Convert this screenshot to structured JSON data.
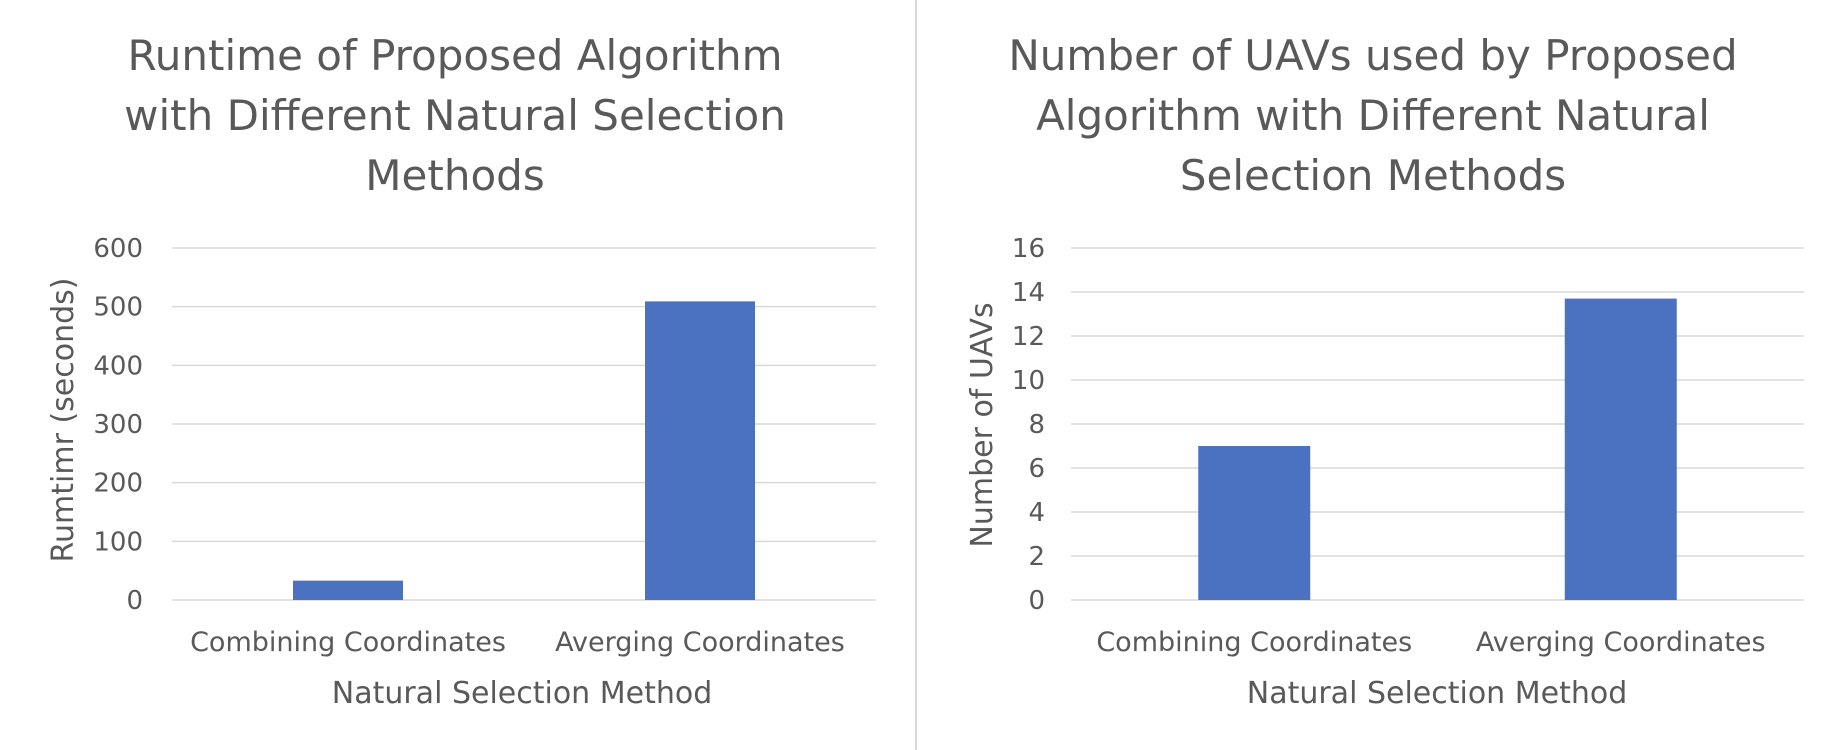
{
  "chart_data": [
    {
      "type": "bar",
      "title_lines": [
        "Runtime of Proposed Algorithm",
        "with Different Natural Selection",
        "Methods"
      ],
      "xlabel": "Natural Selection Method",
      "ylabel": "Rumtimr (seconds)",
      "categories": [
        "Combining Coordinates",
        "Averging Coordinates"
      ],
      "values": [
        33,
        509
      ],
      "ylim": [
        0,
        600
      ],
      "yticks": [
        0,
        100,
        200,
        300,
        400,
        500,
        600
      ],
      "grid": true,
      "bar_color": "#4a72c0"
    },
    {
      "type": "bar",
      "title_lines": [
        "Number of UAVs used by Proposed",
        "Algorithm with Different Natural",
        "Selection Methods"
      ],
      "xlabel": "Natural Selection Method",
      "ylabel": "Number of UAVs",
      "categories": [
        "Combining Coordinates",
        "Averging Coordinates"
      ],
      "values": [
        7,
        13.7
      ],
      "ylim": [
        0,
        16
      ],
      "yticks": [
        0,
        2,
        4,
        6,
        8,
        10,
        12,
        14,
        16
      ],
      "grid": true,
      "bar_color": "#4a72c0"
    }
  ]
}
